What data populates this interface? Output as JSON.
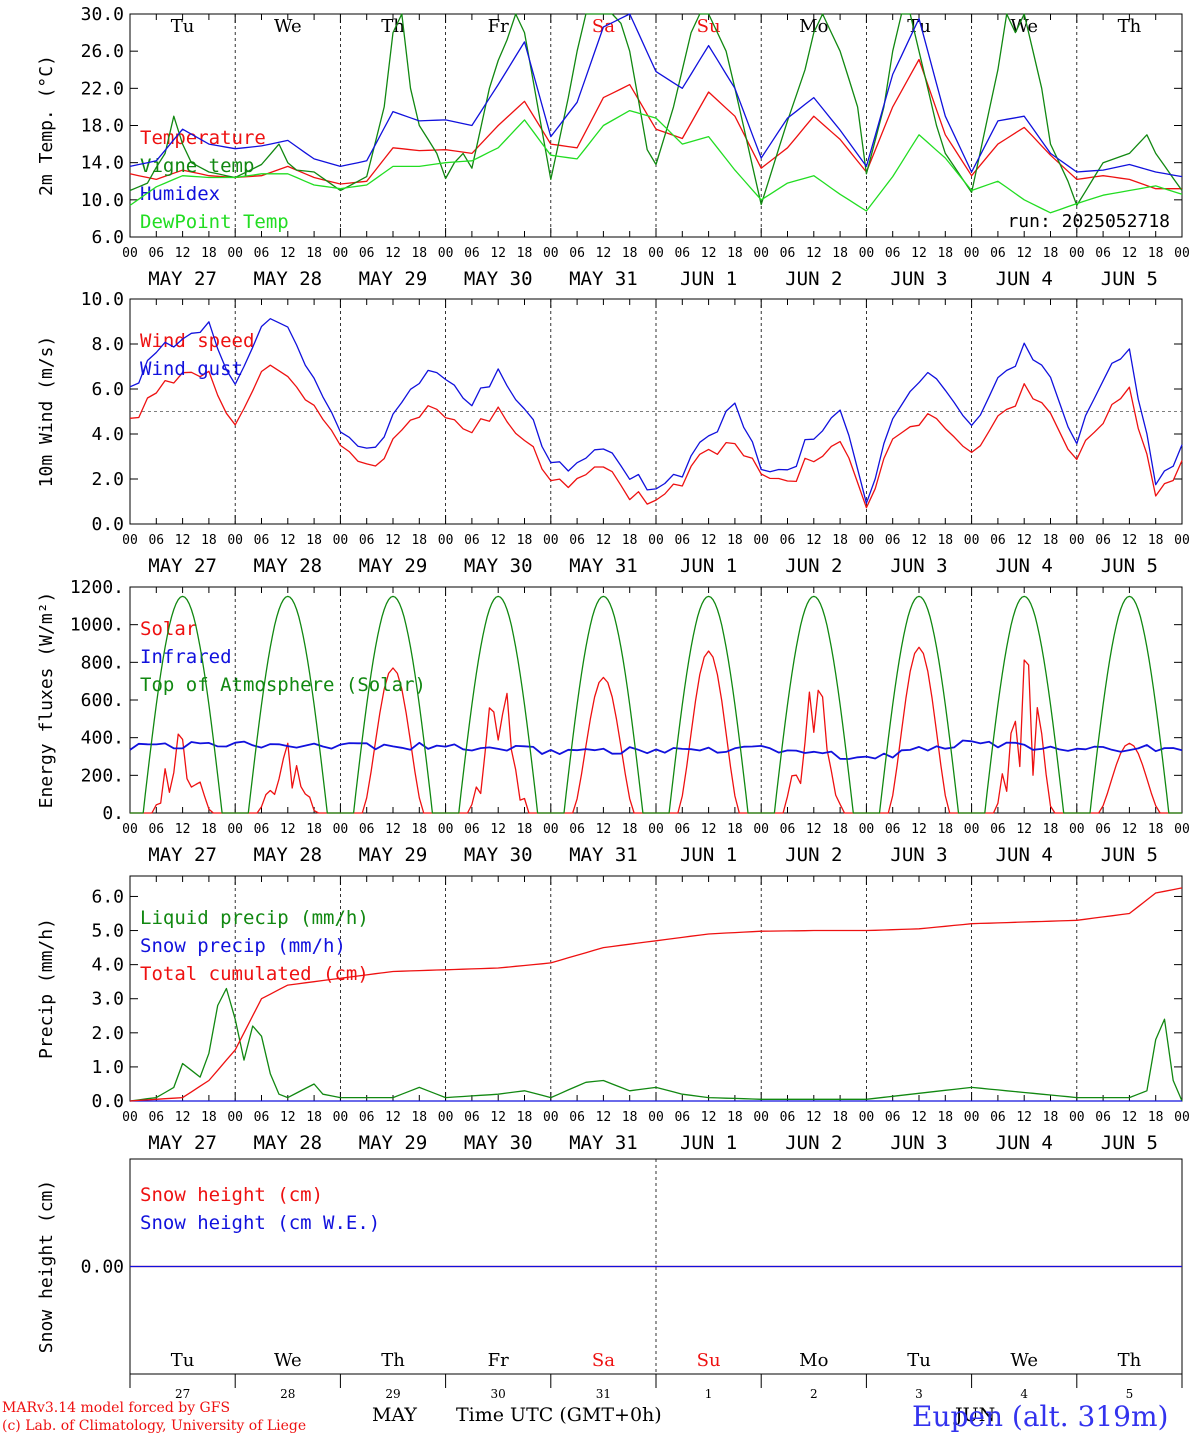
{
  "meta": {
    "run": "run: 2025052718",
    "model_line1": "MARv3.14 model forced by GFS",
    "model_line2": "(c) Lab. of Climatology, University of Liege",
    "xlabel": "Time UTC (GMT+0h)",
    "station": "Eupen (alt. 319m)",
    "month_label_1": "MAY",
    "month_label_2": "JUN"
  },
  "colors": {
    "red": "#ee1111",
    "green": "#118811",
    "blue": "#1111dd",
    "lightgreen": "#22dd22",
    "weekend": "#ee1111"
  },
  "days": [
    {
      "abbr": "Tu",
      "date_label": "MAY 27",
      "day_num": "27"
    },
    {
      "abbr": "We",
      "date_label": "MAY 28",
      "day_num": "28"
    },
    {
      "abbr": "Th",
      "date_label": "MAY 29",
      "day_num": "29"
    },
    {
      "abbr": "Fr",
      "date_label": "MAY 30",
      "day_num": "30"
    },
    {
      "abbr": "Sa",
      "date_label": "MAY 31",
      "day_num": "31",
      "weekend": true
    },
    {
      "abbr": "Su",
      "date_label": "JUN  1",
      "day_num": "1",
      "weekend": true
    },
    {
      "abbr": "Mo",
      "date_label": "JUN  2",
      "day_num": "2"
    },
    {
      "abbr": "Tu",
      "date_label": "JUN  3",
      "day_num": "3"
    },
    {
      "abbr": "We",
      "date_label": "JUN  4",
      "day_num": "4"
    },
    {
      "abbr": "Th",
      "date_label": "JUN  5",
      "day_num": "5"
    }
  ],
  "hour_ticks": [
    "00",
    "06",
    "12",
    "18"
  ],
  "chart_data": [
    {
      "id": "temp",
      "type": "line",
      "ylabel": "2m Temp. (°C)",
      "ylim": [
        6,
        30
      ],
      "yticks": [
        "6.0",
        "10.0",
        "14.0",
        "18.0",
        "22.0",
        "26.0",
        "30.0"
      ],
      "ytick_values": [
        6,
        10,
        14,
        18,
        22,
        26,
        30
      ],
      "x_unit": "hours since 2025-05-27 00 UTC",
      "series": [
        {
          "name": "Temperature",
          "color": "red",
          "x": [
            0,
            6,
            12,
            18,
            24,
            30,
            36,
            42,
            48,
            54,
            60,
            66,
            72,
            78,
            84,
            90,
            96,
            102,
            108,
            114,
            120,
            126,
            132,
            138,
            144,
            150,
            156,
            162,
            168,
            174,
            180,
            186,
            192,
            198,
            204,
            210,
            216,
            222,
            228,
            234,
            240
          ],
          "y": [
            12.8,
            12.2,
            13.2,
            12.6,
            12.4,
            12.6,
            13.6,
            12.4,
            11.7,
            12.0,
            15.6,
            15.3,
            15.4,
            15.0,
            18.0,
            20.6,
            16.0,
            15.6,
            21.0,
            22.4,
            17.6,
            16.6,
            21.6,
            19.0,
            13.4,
            15.6,
            19.0,
            16.5,
            13.0,
            20.0,
            25.1,
            17.0,
            12.6,
            16.0,
            17.8,
            14.8,
            12.2,
            12.6,
            12.2,
            11.2,
            11.2
          ]
        },
        {
          "name": "Vigne temp",
          "color": "green",
          "x": [
            0,
            4,
            6,
            8,
            10,
            11,
            12,
            13,
            14,
            18,
            24,
            30,
            34,
            35,
            36,
            38,
            42,
            48,
            54,
            58,
            60,
            62,
            64,
            66,
            70,
            72,
            74,
            76,
            78,
            82,
            84,
            86,
            88,
            90,
            96,
            100,
            102,
            104,
            106,
            108,
            110,
            112,
            114,
            118,
            120,
            124,
            126,
            128,
            130,
            132,
            134,
            136,
            138,
            144,
            150,
            154,
            156,
            158,
            160,
            162,
            166,
            168,
            172,
            174,
            176,
            178,
            180,
            184,
            186,
            192,
            198,
            200,
            202,
            204,
            206,
            208,
            210,
            214,
            216,
            222,
            228,
            230,
            232,
            234,
            240
          ],
          "y": [
            11.0,
            11.8,
            13.5,
            15.0,
            19.0,
            23.8,
            16.0,
            19.0,
            14.0,
            13.0,
            12.4,
            13.8,
            16.0,
            21.0,
            14.0,
            13.2,
            13.0,
            11.0,
            12.5,
            20.0,
            28.0,
            32.0,
            22.0,
            18.0,
            15.0,
            12.3,
            14.0,
            15.0,
            13.4,
            22.0,
            25.0,
            27.2,
            30.0,
            28.0,
            12.2,
            21.0,
            26.0,
            30.0,
            32.0,
            31.0,
            30.0,
            29.0,
            26.0,
            15.4,
            13.8,
            20.0,
            24.0,
            28.0,
            32.0,
            31.0,
            28.0,
            26.0,
            22.0,
            9.5,
            18.5,
            24.0,
            28.0,
            30.0,
            28.0,
            26.0,
            20.0,
            12.8,
            20.0,
            26.0,
            31.0,
            30.0,
            26.0,
            18.0,
            15.0,
            10.8,
            24.0,
            30.0,
            28.0,
            32.0,
            26.0,
            22.0,
            16.0,
            12.0,
            9.4,
            14.0,
            15.0,
            16.0,
            17.0,
            15.0,
            11.0
          ]
        },
        {
          "name": "Humidex",
          "color": "blue",
          "x": [
            0,
            6,
            12,
            18,
            24,
            30,
            36,
            42,
            48,
            54,
            60,
            66,
            72,
            78,
            84,
            90,
            96,
            102,
            108,
            114,
            120,
            126,
            132,
            138,
            144,
            150,
            156,
            162,
            168,
            174,
            180,
            186,
            192,
            198,
            204,
            210,
            216,
            222,
            228,
            234,
            240
          ],
          "y": [
            13.6,
            14.2,
            17.6,
            16.0,
            15.5,
            15.8,
            16.4,
            14.4,
            13.6,
            14.2,
            19.5,
            18.5,
            18.6,
            18.0,
            22.4,
            27.0,
            16.8,
            20.5,
            28.6,
            30.0,
            23.8,
            22.0,
            26.6,
            22.0,
            14.5,
            18.8,
            21.0,
            17.5,
            13.6,
            23.5,
            29.5,
            19.0,
            13.0,
            18.5,
            19.0,
            15.0,
            13.0,
            13.2,
            13.8,
            13.0,
            12.5
          ]
        },
        {
          "name": "DewPoint Temp",
          "color": "lightgreen",
          "x": [
            0,
            6,
            12,
            18,
            24,
            30,
            36,
            42,
            48,
            54,
            60,
            66,
            72,
            78,
            84,
            90,
            96,
            102,
            108,
            114,
            120,
            126,
            132,
            138,
            144,
            150,
            156,
            162,
            168,
            174,
            180,
            186,
            192,
            198,
            204,
            210,
            216,
            222,
            228,
            234,
            240
          ],
          "y": [
            9.4,
            11.4,
            12.6,
            12.4,
            12.4,
            12.8,
            12.8,
            11.6,
            11.2,
            11.6,
            13.6,
            13.6,
            14.0,
            14.2,
            15.6,
            18.6,
            14.8,
            14.4,
            18.0,
            19.6,
            18.8,
            16.0,
            16.8,
            13.2,
            10.0,
            11.8,
            12.6,
            10.6,
            8.8,
            12.5,
            17.0,
            14.5,
            11.0,
            12.0,
            10.0,
            8.6,
            9.6,
            10.5,
            11.0,
            11.5,
            10.6
          ]
        }
      ]
    },
    {
      "id": "wind",
      "type": "line",
      "ylabel": "10m Wind (m/s)",
      "ylim": [
        0,
        10
      ],
      "yticks": [
        "0.0",
        "2.0",
        "4.0",
        "6.0",
        "8.0",
        "10.0"
      ],
      "ytick_values": [
        0,
        2,
        4,
        6,
        8,
        10
      ],
      "reference_line": 5,
      "series": [
        {
          "name": "Wind speed",
          "color": "red",
          "x": [
            0,
            6,
            12,
            18,
            24,
            30,
            36,
            42,
            48,
            54,
            60,
            66,
            72,
            78,
            84,
            90,
            96,
            102,
            108,
            114,
            120,
            126,
            132,
            138,
            144,
            150,
            156,
            162,
            168,
            174,
            180,
            186,
            192,
            198,
            204,
            210,
            216,
            222,
            228,
            234,
            240
          ],
          "y": [
            4.5,
            5.8,
            6.5,
            6.6,
            4.6,
            6.8,
            6.6,
            5.0,
            3.3,
            2.5,
            3.5,
            5.0,
            4.9,
            4.2,
            4.9,
            4.0,
            2.0,
            1.8,
            2.4,
            1.4,
            1.0,
            2.0,
            3.2,
            3.8,
            2.0,
            1.8,
            3.0,
            3.4,
            1.0,
            3.5,
            4.6,
            4.5,
            3.0,
            4.5,
            6.0,
            4.8,
            2.8,
            4.6,
            5.8,
            1.5,
            2.5
          ]
        },
        {
          "name": "Wind gust",
          "color": "blue",
          "x": [
            0,
            6,
            12,
            18,
            24,
            30,
            36,
            42,
            48,
            54,
            60,
            66,
            72,
            78,
            84,
            90,
            96,
            102,
            108,
            114,
            120,
            126,
            132,
            138,
            144,
            150,
            156,
            162,
            168,
            174,
            180,
            186,
            192,
            198,
            204,
            210,
            216,
            222,
            228,
            234,
            240
          ],
          "y": [
            5.9,
            7.6,
            8.0,
            8.8,
            6.4,
            8.8,
            8.8,
            6.2,
            3.9,
            3.2,
            4.6,
            6.5,
            6.6,
            5.4,
            6.6,
            5.4,
            2.8,
            2.5,
            3.2,
            2.3,
            1.5,
            2.4,
            3.8,
            5.6,
            2.2,
            2.3,
            4.0,
            4.8,
            1.2,
            4.4,
            6.5,
            6.2,
            4.2,
            6.2,
            7.8,
            6.4,
            3.5,
            6.5,
            7.5,
            2.0,
            3.2
          ]
        }
      ]
    },
    {
      "id": "energy",
      "type": "line",
      "ylabel": "Energy fluxes (W/m²)",
      "ylim": [
        0,
        1200
      ],
      "yticks": [
        "0.",
        "200.",
        "400.",
        "600.",
        "800.",
        "1000.",
        "1200."
      ],
      "ytick_values": [
        0,
        200,
        400,
        600,
        800,
        1000,
        1200
      ],
      "toa_peak": 1150,
      "series": [
        {
          "name": "Solar",
          "color": "red",
          "day_peaks": [
            540,
            390,
            770,
            790,
            720,
            860,
            850,
            880,
            900,
            370
          ]
        },
        {
          "name": "Infrared",
          "color": "blue",
          "x": [
            0,
            24,
            48,
            72,
            96,
            120,
            144,
            168,
            192,
            216,
            240
          ],
          "y": [
            350,
            368,
            360,
            352,
            330,
            330,
            340,
            290,
            380,
            330,
            350
          ]
        },
        {
          "name": "Top of Atmosphere (Solar)",
          "color": "green"
        }
      ]
    },
    {
      "id": "precip",
      "type": "line",
      "ylabel": "Precip (mm/h)",
      "ylim": [
        0,
        6.6
      ],
      "yticks": [
        "0.0",
        "1.0",
        "2.0",
        "3.0",
        "4.0",
        "5.0",
        "6.0"
      ],
      "ytick_values": [
        0,
        1,
        2,
        3,
        4,
        5,
        6
      ],
      "series": [
        {
          "name": "Liquid precip (mm/h)",
          "color": "green",
          "x": [
            0,
            6,
            10,
            12,
            14,
            16,
            18,
            20,
            22,
            24,
            26,
            28,
            30,
            32,
            34,
            36,
            42,
            44,
            48,
            54,
            60,
            66,
            72,
            84,
            90,
            96,
            104,
            108,
            114,
            120,
            126,
            132,
            144,
            168,
            192,
            216,
            228,
            232,
            234,
            236,
            238,
            240
          ],
          "y": [
            0,
            0.1,
            0.4,
            1.1,
            0.9,
            0.7,
            1.4,
            2.8,
            3.3,
            2.4,
            1.2,
            2.2,
            1.9,
            0.8,
            0.2,
            0.1,
            0.5,
            0.2,
            0.1,
            0.1,
            0.1,
            0.4,
            0.1,
            0.2,
            0.3,
            0.1,
            0.55,
            0.6,
            0.3,
            0.4,
            0.2,
            0.1,
            0.05,
            0.05,
            0.4,
            0.1,
            0.1,
            0.3,
            1.8,
            2.4,
            0.6,
            0
          ]
        },
        {
          "name": "Snow precip (mm/h)",
          "color": "blue",
          "x": [
            0,
            240
          ],
          "y": [
            0,
            0
          ]
        },
        {
          "name": "Total cumulated (cm)",
          "color": "red",
          "x": [
            0,
            12,
            18,
            24,
            30,
            36,
            48,
            60,
            72,
            84,
            96,
            108,
            120,
            132,
            144,
            156,
            168,
            180,
            192,
            204,
            216,
            228,
            234,
            240
          ],
          "y": [
            0,
            0.1,
            0.6,
            1.5,
            3.0,
            3.4,
            3.6,
            3.8,
            3.85,
            3.9,
            4.05,
            4.5,
            4.7,
            4.9,
            4.98,
            5.0,
            5.0,
            5.05,
            5.2,
            5.25,
            5.3,
            5.5,
            6.1,
            6.25
          ]
        }
      ]
    },
    {
      "id": "snow",
      "type": "line",
      "ylabel": "Snow height (cm)",
      "ylim": [
        -1,
        1
      ],
      "yticks": [
        "0.00"
      ],
      "ytick_values": [
        0
      ],
      "series": [
        {
          "name": "Snow height (cm)",
          "color": "red",
          "x": [
            0,
            240
          ],
          "y": [
            0,
            0
          ]
        },
        {
          "name": "Snow height (cm W.E.)",
          "color": "blue",
          "x": [
            0,
            240
          ],
          "y": [
            0,
            0
          ]
        }
      ]
    }
  ]
}
